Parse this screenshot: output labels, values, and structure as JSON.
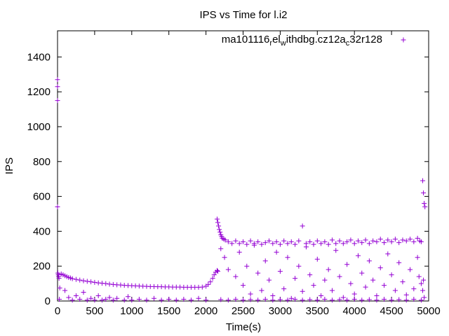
{
  "chart_data": {
    "type": "scatter",
    "title": "IPS vs Time for l.i2",
    "xlabel": "Time(s)",
    "ylabel": "IPS",
    "xlim": [
      0,
      5000
    ],
    "ylim": [
      0,
      1550
    ],
    "x_ticks": [
      0,
      500,
      1000,
      1500,
      2000,
      2500,
      3000,
      3500,
      4000,
      4500,
      5000
    ],
    "y_ticks": [
      0,
      200,
      400,
      600,
      800,
      1000,
      1200,
      1400
    ],
    "grid": false,
    "legend_position": "top-right",
    "marker": "plus",
    "series": [
      {
        "name_parts": {
          "p1": "ma101116",
          "s1": "r",
          "p2": "el",
          "s2": "w",
          "p3": "ithdbg.cz12a",
          "s3": "c",
          "p4": "32r128"
        },
        "color": "#9400d3",
        "points": [
          [
            0,
            1270
          ],
          [
            0,
            1230
          ],
          [
            0,
            1150
          ],
          [
            0,
            540
          ],
          [
            5,
            160
          ],
          [
            10,
            150
          ],
          [
            15,
            140
          ],
          [
            20,
            130
          ],
          [
            25,
            10
          ],
          [
            30,
            75
          ],
          [
            50,
            155
          ],
          [
            75,
            150
          ],
          [
            100,
            145
          ],
          [
            125,
            140
          ],
          [
            150,
            135
          ],
          [
            175,
            132
          ],
          [
            200,
            128
          ],
          [
            250,
            124
          ],
          [
            300,
            120
          ],
          [
            350,
            116
          ],
          [
            400,
            113
          ],
          [
            450,
            110
          ],
          [
            500,
            107
          ],
          [
            550,
            104
          ],
          [
            600,
            102
          ],
          [
            650,
            100
          ],
          [
            700,
            97
          ],
          [
            750,
            95
          ],
          [
            800,
            93
          ],
          [
            850,
            92
          ],
          [
            900,
            90
          ],
          [
            950,
            89
          ],
          [
            1000,
            88
          ],
          [
            1050,
            87
          ],
          [
            1100,
            86
          ],
          [
            1150,
            85
          ],
          [
            1200,
            84
          ],
          [
            1250,
            83
          ],
          [
            1300,
            83
          ],
          [
            1350,
            82
          ],
          [
            1400,
            82
          ],
          [
            1450,
            81
          ],
          [
            1500,
            81
          ],
          [
            1550,
            80
          ],
          [
            1600,
            80
          ],
          [
            1650,
            80
          ],
          [
            1700,
            79
          ],
          [
            1750,
            79
          ],
          [
            1800,
            79
          ],
          [
            1850,
            79
          ],
          [
            1900,
            79
          ],
          [
            1950,
            80
          ],
          [
            2000,
            85
          ],
          [
            2030,
            95
          ],
          [
            2060,
            110
          ],
          [
            2090,
            130
          ],
          [
            2110,
            150
          ],
          [
            2130,
            165
          ],
          [
            2150,
            175
          ],
          [
            2160,
            170
          ],
          [
            100,
            60
          ],
          [
            150,
            20
          ],
          [
            200,
            5
          ],
          [
            250,
            30
          ],
          [
            300,
            10
          ],
          [
            350,
            50
          ],
          [
            400,
            5
          ],
          [
            450,
            15
          ],
          [
            500,
            5
          ],
          [
            550,
            30
          ],
          [
            600,
            5
          ],
          [
            650,
            10
          ],
          [
            700,
            20
          ],
          [
            750,
            5
          ],
          [
            800,
            15
          ],
          [
            900,
            5
          ],
          [
            950,
            25
          ],
          [
            1000,
            5
          ],
          [
            1100,
            10
          ],
          [
            1200,
            5
          ],
          [
            1300,
            15
          ],
          [
            1400,
            5
          ],
          [
            1500,
            10
          ],
          [
            1600,
            5
          ],
          [
            1700,
            10
          ],
          [
            1800,
            5
          ],
          [
            1900,
            15
          ],
          [
            2000,
            5
          ],
          [
            2150,
            470
          ],
          [
            2160,
            450
          ],
          [
            2170,
            430
          ],
          [
            2180,
            410
          ],
          [
            2190,
            395
          ],
          [
            2200,
            380
          ],
          [
            2210,
            370
          ],
          [
            2220,
            360
          ],
          [
            2240,
            355
          ],
          [
            2260,
            350
          ],
          [
            2300,
            340
          ],
          [
            2350,
            330
          ],
          [
            2400,
            345
          ],
          [
            2450,
            330
          ],
          [
            2500,
            340
          ],
          [
            2550,
            325
          ],
          [
            2600,
            345
          ],
          [
            2650,
            330
          ],
          [
            2700,
            340
          ],
          [
            2750,
            325
          ],
          [
            2800,
            335
          ],
          [
            2850,
            345
          ],
          [
            2900,
            330
          ],
          [
            2950,
            340
          ],
          [
            3000,
            325
          ],
          [
            3050,
            345
          ],
          [
            3100,
            330
          ],
          [
            3150,
            340
          ],
          [
            3200,
            325
          ],
          [
            3250,
            345
          ],
          [
            3300,
            430
          ],
          [
            3350,
            330
          ],
          [
            3400,
            340
          ],
          [
            3450,
            325
          ],
          [
            3500,
            345
          ],
          [
            3550,
            330
          ],
          [
            3600,
            340
          ],
          [
            3650,
            325
          ],
          [
            3700,
            350
          ],
          [
            3750,
            330
          ],
          [
            3800,
            345
          ],
          [
            3850,
            330
          ],
          [
            3900,
            340
          ],
          [
            3950,
            350
          ],
          [
            4000,
            330
          ],
          [
            4050,
            345
          ],
          [
            4100,
            335
          ],
          [
            4150,
            350
          ],
          [
            4200,
            330
          ],
          [
            4250,
            345
          ],
          [
            4300,
            340
          ],
          [
            4350,
            355
          ],
          [
            4400,
            335
          ],
          [
            4450,
            350
          ],
          [
            4500,
            340
          ],
          [
            4550,
            355
          ],
          [
            4600,
            335
          ],
          [
            4650,
            350
          ],
          [
            4700,
            345
          ],
          [
            4750,
            355
          ],
          [
            4800,
            340
          ],
          [
            4850,
            360
          ],
          [
            4880,
            345
          ],
          [
            4900,
            340
          ],
          [
            4920,
            690
          ],
          [
            4930,
            620
          ],
          [
            4940,
            560
          ],
          [
            4950,
            540
          ],
          [
            2200,
            300
          ],
          [
            2250,
            250
          ],
          [
            2300,
            180
          ],
          [
            2400,
            140
          ],
          [
            2450,
            280
          ],
          [
            2500,
            90
          ],
          [
            2550,
            200
          ],
          [
            2600,
            40
          ],
          [
            2650,
            320
          ],
          [
            2700,
            160
          ],
          [
            2750,
            60
          ],
          [
            2800,
            230
          ],
          [
            2850,
            120
          ],
          [
            2900,
            30
          ],
          [
            2950,
            280
          ],
          [
            3000,
            170
          ],
          [
            3050,
            70
          ],
          [
            3100,
            250
          ],
          [
            3150,
            15
          ],
          [
            3200,
            130
          ],
          [
            3250,
            200
          ],
          [
            3300,
            55
          ],
          [
            3350,
            310
          ],
          [
            3400,
            150
          ],
          [
            3450,
            90
          ],
          [
            3500,
            240
          ],
          [
            3550,
            30
          ],
          [
            3600,
            120
          ],
          [
            3650,
            180
          ],
          [
            3700,
            60
          ],
          [
            3750,
            290
          ],
          [
            3800,
            140
          ],
          [
            3850,
            20
          ],
          [
            3900,
            210
          ],
          [
            3950,
            100
          ],
          [
            4000,
            40
          ],
          [
            4050,
            260
          ],
          [
            4100,
            160
          ],
          [
            4150,
            80
          ],
          [
            4200,
            230
          ],
          [
            4250,
            120
          ],
          [
            4300,
            30
          ],
          [
            4350,
            190
          ],
          [
            4400,
            90
          ],
          [
            4450,
            270
          ],
          [
            4500,
            150
          ],
          [
            4550,
            60
          ],
          [
            4600,
            220
          ],
          [
            4650,
            110
          ],
          [
            4700,
            35
          ],
          [
            4750,
            180
          ],
          [
            4800,
            70
          ],
          [
            4850,
            250
          ],
          [
            4870,
            140
          ],
          [
            4900,
            100
          ],
          [
            4920,
            60
          ],
          [
            4930,
            120
          ],
          [
            4940,
            20
          ],
          [
            2200,
            8
          ],
          [
            2300,
            5
          ],
          [
            2400,
            10
          ],
          [
            2500,
            5
          ],
          [
            2600,
            8
          ],
          [
            2700,
            5
          ],
          [
            2800,
            10
          ],
          [
            2900,
            5
          ],
          [
            3000,
            8
          ],
          [
            3100,
            5
          ],
          [
            3200,
            10
          ],
          [
            3300,
            5
          ],
          [
            3400,
            8
          ],
          [
            3500,
            5
          ],
          [
            3600,
            10
          ],
          [
            3700,
            5
          ],
          [
            3800,
            8
          ],
          [
            3900,
            5
          ],
          [
            4000,
            10
          ],
          [
            4100,
            5
          ],
          [
            4200,
            8
          ],
          [
            4300,
            5
          ],
          [
            4400,
            10
          ],
          [
            4500,
            5
          ],
          [
            4600,
            8
          ],
          [
            4700,
            5
          ],
          [
            4800,
            10
          ],
          [
            4900,
            5
          ]
        ]
      }
    ]
  }
}
